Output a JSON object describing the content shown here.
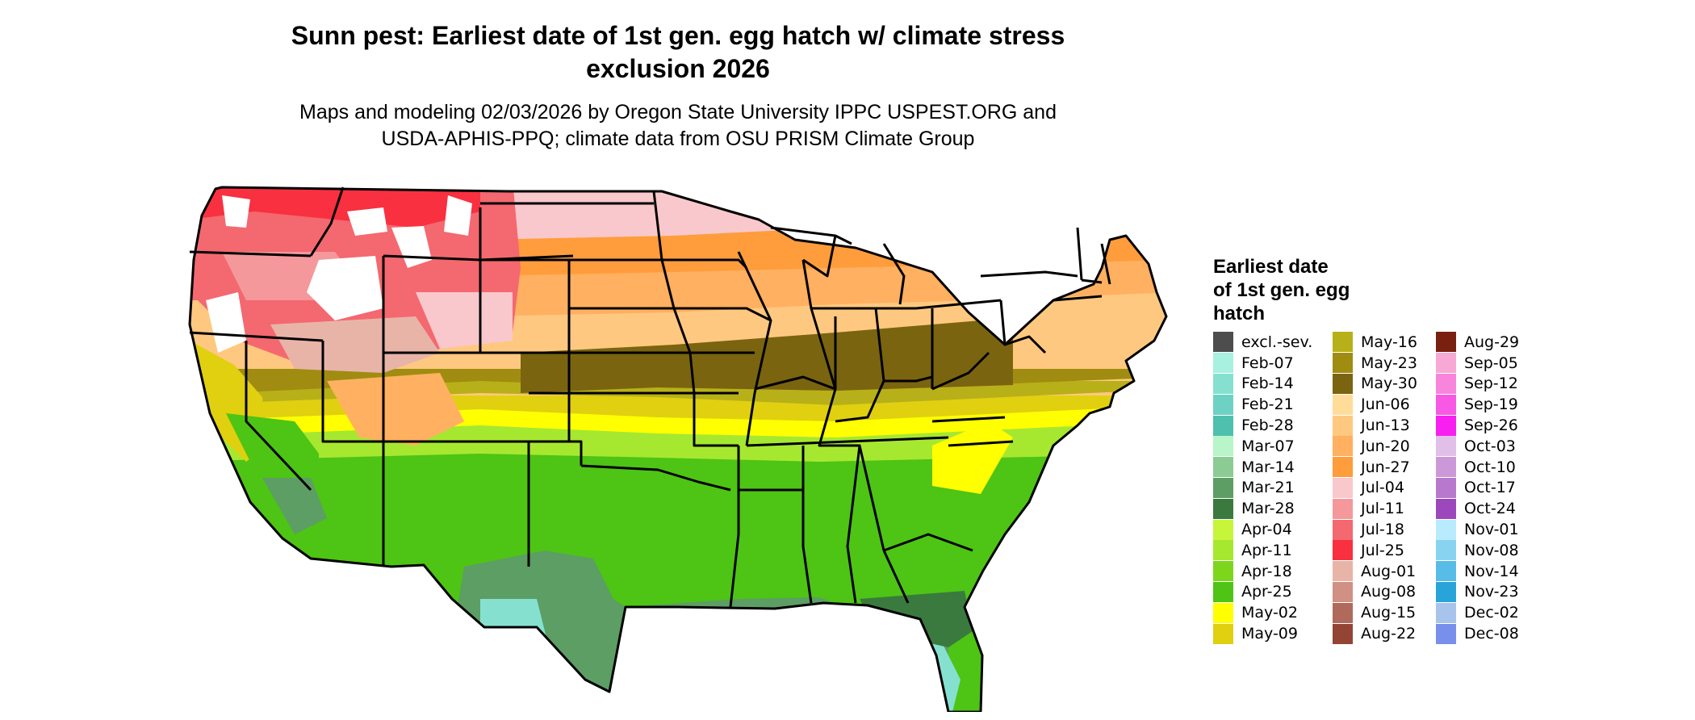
{
  "title_line1": "Sunn pest: Earliest date of 1st gen. egg hatch w/ climate stress",
  "title_line2": "exclusion 2026",
  "subtitle_line1": "Maps and modeling 02/03/2026 by Oregon State University IPPC USPEST.ORG and",
  "subtitle_line2": "USDA-APHIS-PPQ; climate data from OSU PRISM Climate Group",
  "legend": {
    "title_lines": [
      "Earliest date",
      "of 1st gen. egg",
      "hatch"
    ],
    "items": [
      {
        "label": "excl.-sev.",
        "color": "#4d4d4d"
      },
      {
        "label": "Feb-07",
        "color": "#a8f0e0"
      },
      {
        "label": "Feb-14",
        "color": "#86e0d0"
      },
      {
        "label": "Feb-21",
        "color": "#6dd2c4"
      },
      {
        "label": "Feb-28",
        "color": "#4fbfae"
      },
      {
        "label": "Mar-07",
        "color": "#b8f5c8"
      },
      {
        "label": "Mar-14",
        "color": "#8ccc94"
      },
      {
        "label": "Mar-21",
        "color": "#5c9e64"
      },
      {
        "label": "Mar-28",
        "color": "#3a7a3e"
      },
      {
        "label": "Apr-04",
        "color": "#c6f53a"
      },
      {
        "label": "Apr-11",
        "color": "#a6e830"
      },
      {
        "label": "Apr-18",
        "color": "#7ed61c"
      },
      {
        "label": "Apr-25",
        "color": "#4ec414"
      },
      {
        "label": "May-02",
        "color": "#ffff00"
      },
      {
        "label": "May-09",
        "color": "#e0d010"
      },
      {
        "label": "May-16",
        "color": "#b8b018"
      },
      {
        "label": "May-23",
        "color": "#a08c10"
      },
      {
        "label": "May-30",
        "color": "#7a6410"
      },
      {
        "label": "Jun-06",
        "color": "#ffdc98"
      },
      {
        "label": "Jun-13",
        "color": "#ffc880"
      },
      {
        "label": "Jun-20",
        "color": "#ffb060"
      },
      {
        "label": "Jun-27",
        "color": "#ff9c3c"
      },
      {
        "label": "Jul-04",
        "color": "#f8c8cc"
      },
      {
        "label": "Jul-11",
        "color": "#f4989c"
      },
      {
        "label": "Jul-18",
        "color": "#f46870"
      },
      {
        "label": "Jul-25",
        "color": "#f83040"
      },
      {
        "label": "Aug-01",
        "color": "#e8b4a8"
      },
      {
        "label": "Aug-08",
        "color": "#d09084"
      },
      {
        "label": "Aug-15",
        "color": "#b06a5c"
      },
      {
        "label": "Aug-22",
        "color": "#944434"
      },
      {
        "label": "Aug-29",
        "color": "#7a2010"
      },
      {
        "label": "Sep-05",
        "color": "#f8a8d4"
      },
      {
        "label": "Sep-12",
        "color": "#f884dc"
      },
      {
        "label": "Sep-19",
        "color": "#f858e4"
      },
      {
        "label": "Sep-26",
        "color": "#f820f0"
      },
      {
        "label": "Oct-03",
        "color": "#e0c0e8"
      },
      {
        "label": "Oct-10",
        "color": "#cc98d8"
      },
      {
        "label": "Oct-17",
        "color": "#b878cc"
      },
      {
        "label": "Oct-24",
        "color": "#9c48bc"
      },
      {
        "label": "Nov-01",
        "color": "#b8ecfc"
      },
      {
        "label": "Nov-08",
        "color": "#88d4f0"
      },
      {
        "label": "Nov-14",
        "color": "#58bce8"
      },
      {
        "label": "Nov-23",
        "color": "#28a4d8"
      },
      {
        "label": "Dec-02",
        "color": "#a8c4ec"
      },
      {
        "label": "Dec-08",
        "color": "#7890ec"
      }
    ]
  },
  "map_colors": {
    "excluded_severe": "#4d4d4d",
    "unsuitable": "#ffffff",
    "state_border": "#000000"
  }
}
